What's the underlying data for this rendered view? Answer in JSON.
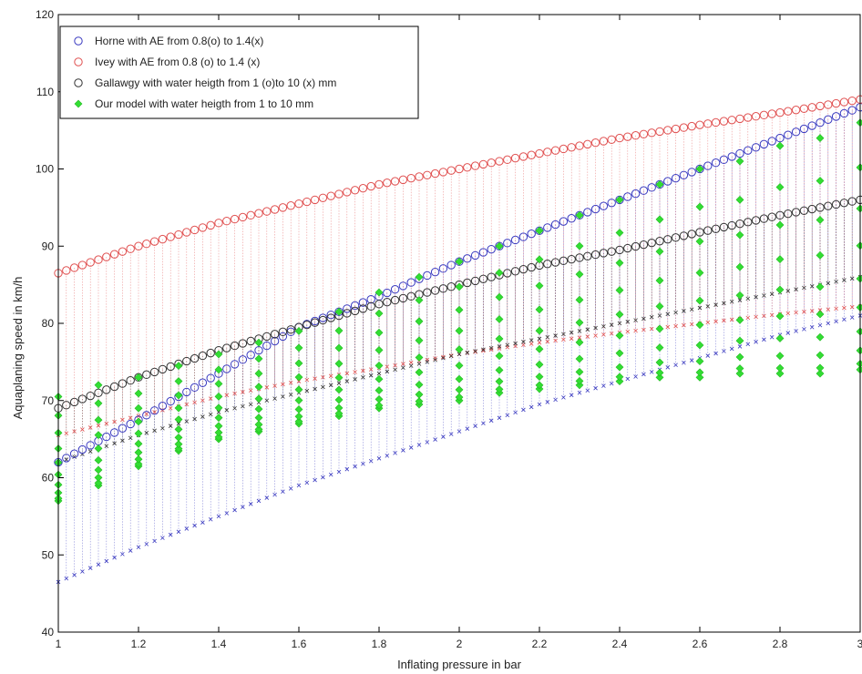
{
  "chart_data": {
    "type": "scatter",
    "xlabel": "Inflating pressure in bar",
    "ylabel": "Aquaplaning speed in km/h",
    "xlim": [
      1,
      3
    ],
    "ylim": [
      40,
      120
    ],
    "xticks": [
      1,
      1.2,
      1.4,
      1.6,
      1.8,
      2,
      2.2,
      2.4,
      2.6,
      2.8,
      3
    ],
    "yticks": [
      40,
      50,
      60,
      70,
      80,
      90,
      100,
      110,
      120
    ],
    "xtick_labels": [
      "1",
      "1.2",
      "1.4",
      "1.6",
      "1.8",
      "2",
      "2.2",
      "2.4",
      "2.6",
      "2.8",
      "3"
    ],
    "ytick_labels": [
      "40",
      "50",
      "60",
      "70",
      "80",
      "90",
      "100",
      "110",
      "120"
    ],
    "legend_position": "top-left",
    "grid": false,
    "series": [
      {
        "name": "Horne with AE from 0.8(o) to 1.4(x)",
        "color": "#3a3ac0",
        "points": [
          [
            1,
            62.0
          ],
          [
            1.2,
            67.5
          ],
          [
            1.4,
            73.5
          ],
          [
            1.6,
            79.5
          ],
          [
            1.8,
            83.5
          ],
          [
            2,
            88.0
          ],
          [
            2.2,
            92.0
          ],
          [
            2.4,
            96.0
          ],
          [
            2.6,
            100.0
          ],
          [
            2.8,
            104.0
          ],
          [
            3,
            108.0
          ]
        ],
        "lower": [
          [
            1,
            46.5
          ],
          [
            1.2,
            51.0
          ],
          [
            1.4,
            55.0
          ],
          [
            1.6,
            59.0
          ],
          [
            1.8,
            62.5
          ],
          [
            2,
            66.0
          ],
          [
            2.2,
            69.5
          ],
          [
            2.4,
            72.5
          ],
          [
            2.6,
            75.5
          ],
          [
            2.8,
            78.5
          ],
          [
            3,
            81.0
          ]
        ]
      },
      {
        "name": "Ivey with AE from 0.8 (o) to 1.4 (x)",
        "color": "#e05050",
        "points": [
          [
            1,
            86.5
          ],
          [
            1.2,
            90.0
          ],
          [
            1.4,
            93.0
          ],
          [
            1.6,
            95.5
          ],
          [
            1.8,
            98.0
          ],
          [
            2,
            100.0
          ],
          [
            2.2,
            102.0
          ],
          [
            2.4,
            104.0
          ],
          [
            2.6,
            105.7
          ],
          [
            2.8,
            107.3
          ],
          [
            3,
            109.0
          ]
        ],
        "lower": [
          [
            1,
            65.5
          ],
          [
            1.2,
            68.0
          ],
          [
            1.4,
            70.5
          ],
          [
            1.6,
            72.5
          ],
          [
            1.8,
            74.2
          ],
          [
            2,
            76.0
          ],
          [
            2.2,
            77.5
          ],
          [
            2.4,
            78.8
          ],
          [
            2.6,
            80.0
          ],
          [
            2.8,
            81.2
          ],
          [
            3,
            82.2
          ]
        ]
      },
      {
        "name": "Gallawgy with water heigth from 1 (o)to 10 (x) mm",
        "color": "#333333",
        "points": [
          [
            1,
            69.0
          ],
          [
            1.2,
            73.0
          ],
          [
            1.4,
            76.5
          ],
          [
            1.6,
            79.5
          ],
          [
            1.8,
            82.5
          ],
          [
            2,
            85.0
          ],
          [
            2.2,
            87.5
          ],
          [
            2.4,
            89.5
          ],
          [
            2.6,
            91.8
          ],
          [
            2.8,
            94.0
          ],
          [
            3,
            96.0
          ]
        ],
        "lower": [
          [
            1,
            62.0
          ],
          [
            1.2,
            65.5
          ],
          [
            1.4,
            68.5
          ],
          [
            1.6,
            71.0
          ],
          [
            1.8,
            73.5
          ],
          [
            2,
            76.0
          ],
          [
            2.2,
            78.0
          ],
          [
            2.4,
            80.0
          ],
          [
            2.6,
            82.0
          ],
          [
            2.8,
            84.0
          ],
          [
            3,
            86.0
          ]
        ]
      },
      {
        "name": "Our model with water heigth from 1 to 10 mm",
        "color": "#33dd33",
        "x": [
          1,
          1.1,
          1.2,
          1.3,
          1.4,
          1.5,
          1.6,
          1.7,
          1.8,
          1.9,
          2,
          2.1,
          2.2,
          2.3,
          2.4,
          2.5,
          2.6,
          2.7,
          2.8,
          2.9,
          3
        ],
        "low": [
          57,
          59,
          61.5,
          63.5,
          65,
          66,
          67,
          68,
          69,
          69.5,
          70,
          71,
          71.5,
          72,
          72.5,
          73,
          73,
          73.5,
          73.5,
          73.5,
          74
        ],
        "high": [
          70.5,
          72,
          73,
          74.5,
          76,
          77.5,
          79,
          81.5,
          84,
          86,
          88,
          90,
          92,
          94,
          96,
          98,
          100,
          101,
          103,
          104,
          106
        ]
      }
    ]
  }
}
